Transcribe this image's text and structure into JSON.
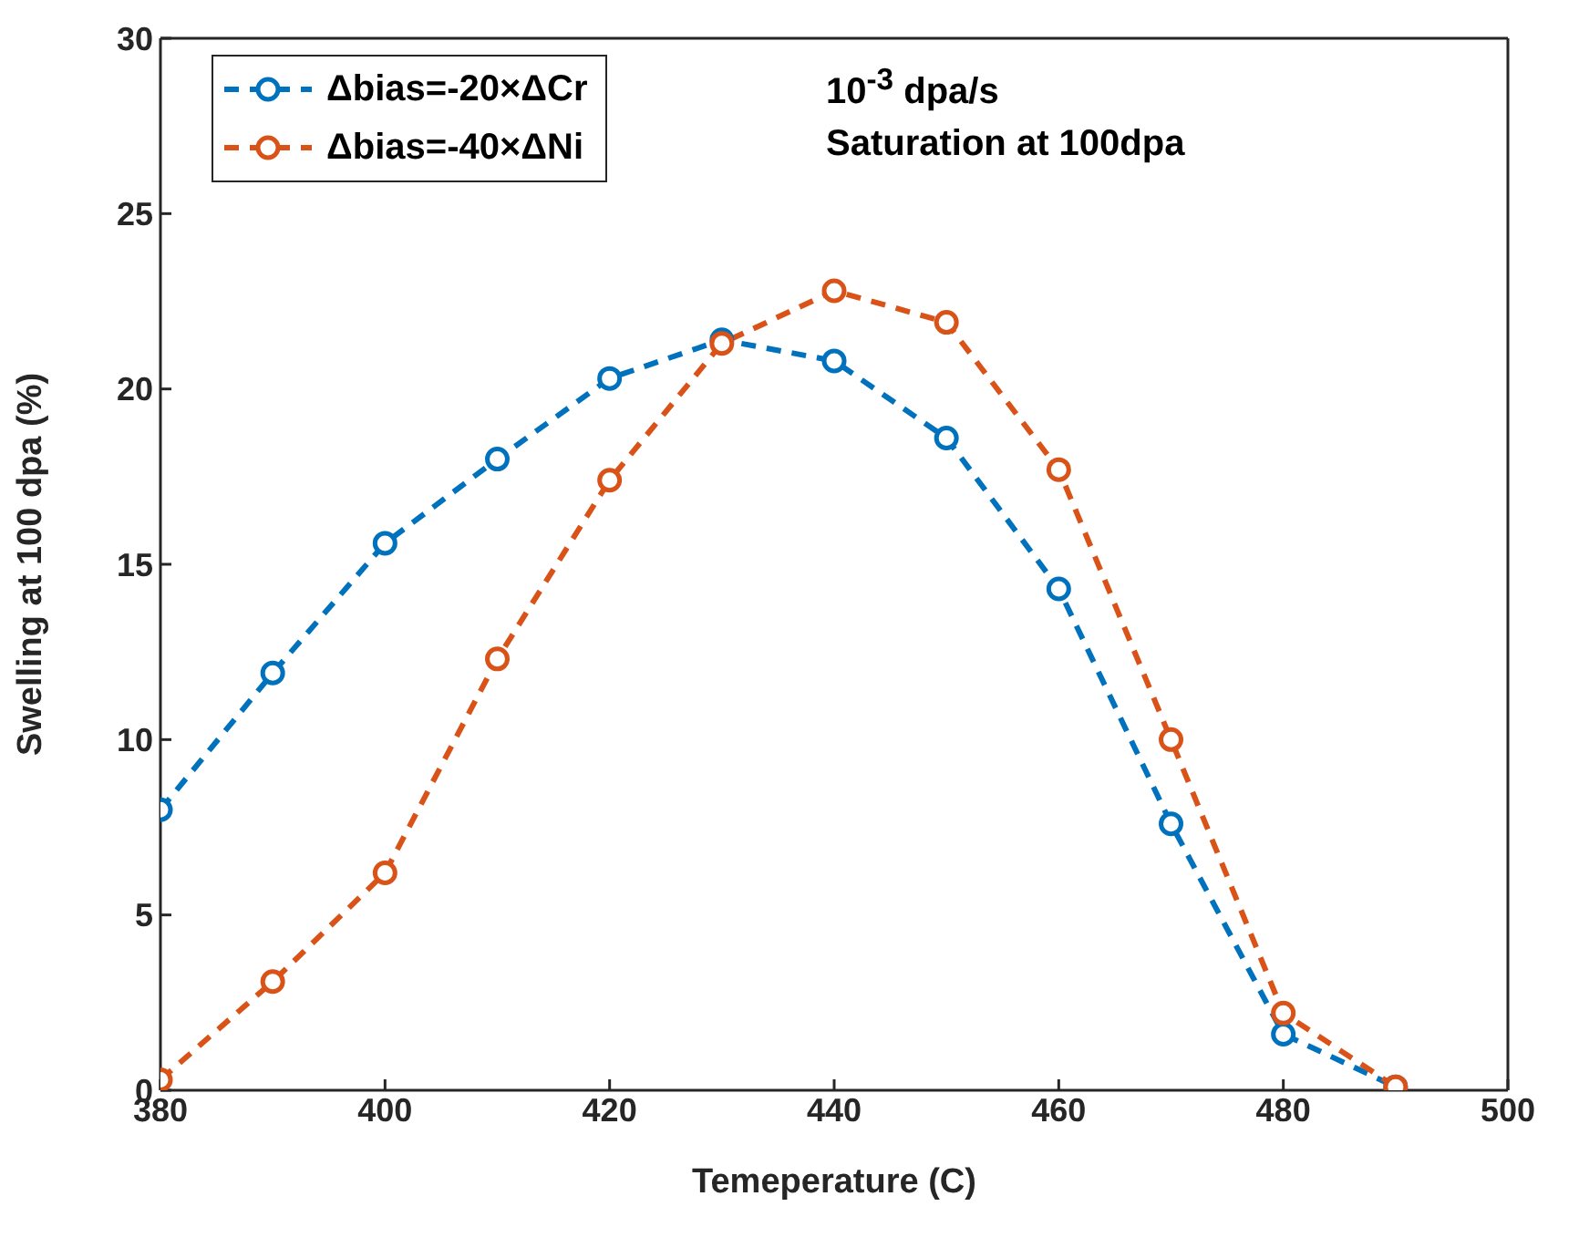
{
  "chart_data": {
    "type": "line",
    "xlabel": "Temeperature (C)",
    "ylabel": "Swelling at 100 dpa (%)",
    "x": [
      380,
      390,
      400,
      410,
      420,
      430,
      440,
      450,
      460,
      470,
      480,
      490
    ],
    "series": [
      {
        "name": "Δbias=-20×ΔCr",
        "color": "#0072bd",
        "values": [
          8.0,
          11.9,
          15.6,
          18.0,
          20.3,
          21.4,
          20.8,
          18.6,
          14.3,
          7.6,
          1.6,
          0.1
        ]
      },
      {
        "name": "Δbias=-40×ΔNi",
        "color": "#d95319",
        "values": [
          0.3,
          3.1,
          6.2,
          12.3,
          17.4,
          21.3,
          22.8,
          21.9,
          17.7,
          10.0,
          2.2,
          0.1
        ]
      }
    ],
    "xlim": [
      380,
      500
    ],
    "xticks": [
      380,
      400,
      420,
      440,
      460,
      480,
      500
    ],
    "ylim": [
      0,
      30
    ],
    "yticks": [
      0,
      5,
      10,
      15,
      20,
      25,
      30
    ],
    "annotations": [
      "10$^{-3}$ dpa/s",
      "Saturation at 100dpa"
    ],
    "legend": "top left",
    "marker": "circle",
    "line_style": "dashed",
    "grid": false
  }
}
